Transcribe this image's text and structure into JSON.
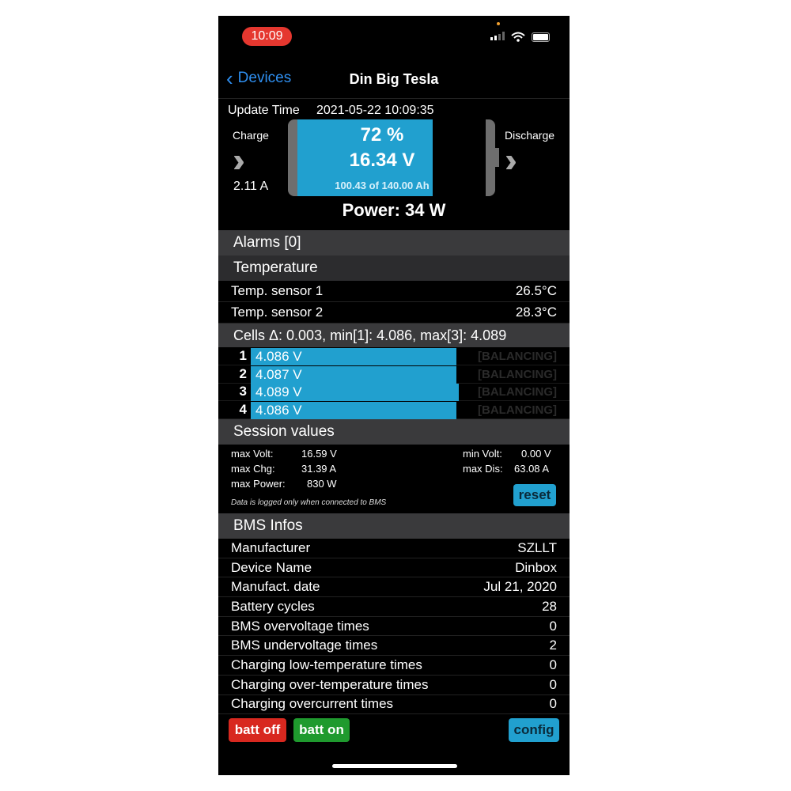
{
  "status_bar": {
    "time": "10:09",
    "time_color": "#e5372f"
  },
  "nav": {
    "back_label": "Devices",
    "title": "Din Big Tesla"
  },
  "overview": {
    "update_label": "Update Time",
    "update_time": "2021-05-22 10:09:35",
    "charge_label": "Charge",
    "charge_current": "2.11 A",
    "discharge_label": "Discharge",
    "soc": "72 %",
    "soc_fraction": 0.72,
    "voltage": "16.34 V",
    "capacity": "100.43 of 140.00 Ah",
    "power": "Power: 34 W",
    "accent": "#21a0cf"
  },
  "alarms": {
    "title": "Alarms [0]"
  },
  "temperature": {
    "title": "Temperature",
    "sensors": [
      {
        "label": "Temp. sensor 1",
        "value": "26.5°C"
      },
      {
        "label": "Temp. sensor 2",
        "value": "28.3°C"
      }
    ]
  },
  "cells": {
    "title": "Cells Δ: 0.003, min[1]: 4.086, max[3]: 4.089",
    "items": [
      {
        "num": "1",
        "voltage": "4.086 V",
        "level": 0.93,
        "status": "[BALANCING]"
      },
      {
        "num": "2",
        "voltage": "4.087 V",
        "level": 0.93,
        "status": "[BALANCING]"
      },
      {
        "num": "3",
        "voltage": "4.089 V",
        "level": 0.94,
        "status": "[BALANCING]"
      },
      {
        "num": "4",
        "voltage": "4.086 V",
        "level": 0.93,
        "status": "[BALANCING]"
      }
    ]
  },
  "session": {
    "title": "Session values",
    "max_volt_label": "max Volt:",
    "max_volt": "16.59 V",
    "max_chg_label": "max Chg:",
    "max_chg": "31.39 A",
    "max_power_label": "max Power:",
    "max_power": "830 W",
    "min_volt_label": "min Volt:",
    "min_volt": "0.00 V",
    "max_dis_label": "max Dis:",
    "max_dis": "63.08 A",
    "note": "Data is logged only when connected to BMS",
    "reset_label": "reset"
  },
  "bms": {
    "title": "BMS Infos",
    "rows": [
      {
        "label": "Manufacturer",
        "value": "SZLLT"
      },
      {
        "label": "Device Name",
        "value": "Dinbox"
      },
      {
        "label": "Manufact. date",
        "value": "Jul 21, 2020"
      },
      {
        "label": "Battery cycles",
        "value": "28"
      },
      {
        "label": "BMS overvoltage times",
        "value": "0"
      },
      {
        "label": "BMS undervoltage times",
        "value": "2"
      },
      {
        "label": "Charging low-temperature times",
        "value": "0"
      },
      {
        "label": "Charging over-temperature times",
        "value": "0"
      },
      {
        "label": "Charging overcurrent times",
        "value": "0"
      }
    ]
  },
  "buttons": {
    "batt_off": "batt off",
    "batt_on": "batt on",
    "config": "config",
    "batt_off_color": "#d8281f",
    "batt_on_color": "#1f9a2e",
    "config_color": "#21a0cf"
  }
}
